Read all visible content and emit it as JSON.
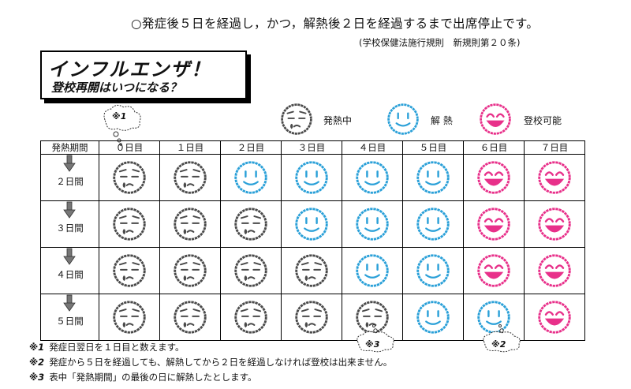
{
  "header": {
    "rule": "○発症後５日を経過し，かつ，解熱後２日を経過するまで出席停止です。",
    "source": "(学校保健法施行規則　新規則第２０条)"
  },
  "title": {
    "main": "インフルエンザ！",
    "sub": "登校再開はいつになる？"
  },
  "legend": [
    {
      "state": "fever",
      "label": "発熱中",
      "color": "#4a4a4a"
    },
    {
      "state": "recovered",
      "label": "解 熱",
      "color": "#2aa0d8"
    },
    {
      "state": "can-attend",
      "label": "登校可能",
      "color": "#e8308a"
    }
  ],
  "callouts": {
    "c1": "※1",
    "c2": "※2",
    "c3": "※3"
  },
  "table": {
    "corner_header": "発熱期間",
    "day_headers": [
      "０日目",
      "１日目",
      "２日目",
      "３日目",
      "４日目",
      "５日目",
      "６日目",
      "７日目"
    ],
    "rows": [
      {
        "label": "２日間",
        "cells": [
          "fever",
          "fever",
          "recovered",
          "recovered",
          "recovered",
          "recovered",
          "can-attend",
          "can-attend"
        ]
      },
      {
        "label": "３日間",
        "cells": [
          "fever",
          "fever",
          "fever",
          "recovered",
          "recovered",
          "recovered",
          "can-attend",
          "can-attend"
        ]
      },
      {
        "label": "４日間",
        "cells": [
          "fever",
          "fever",
          "fever",
          "fever",
          "recovered",
          "recovered",
          "can-attend",
          "can-attend"
        ]
      },
      {
        "label": "５日間",
        "cells": [
          "fever",
          "fever",
          "fever",
          "fever",
          "fever",
          "recovered",
          "recovered",
          "can-attend"
        ]
      }
    ]
  },
  "notes": [
    {
      "mark": "※1",
      "text": "発症日翌日を１日目と数えます。"
    },
    {
      "mark": "※2",
      "text": "発症から５日を経過しても、解熱してから２日を経過しなければ登校は出来ません。"
    },
    {
      "mark": "※3",
      "text": "表中「発熱期間」の最後の日に解熱したとします。"
    }
  ]
}
